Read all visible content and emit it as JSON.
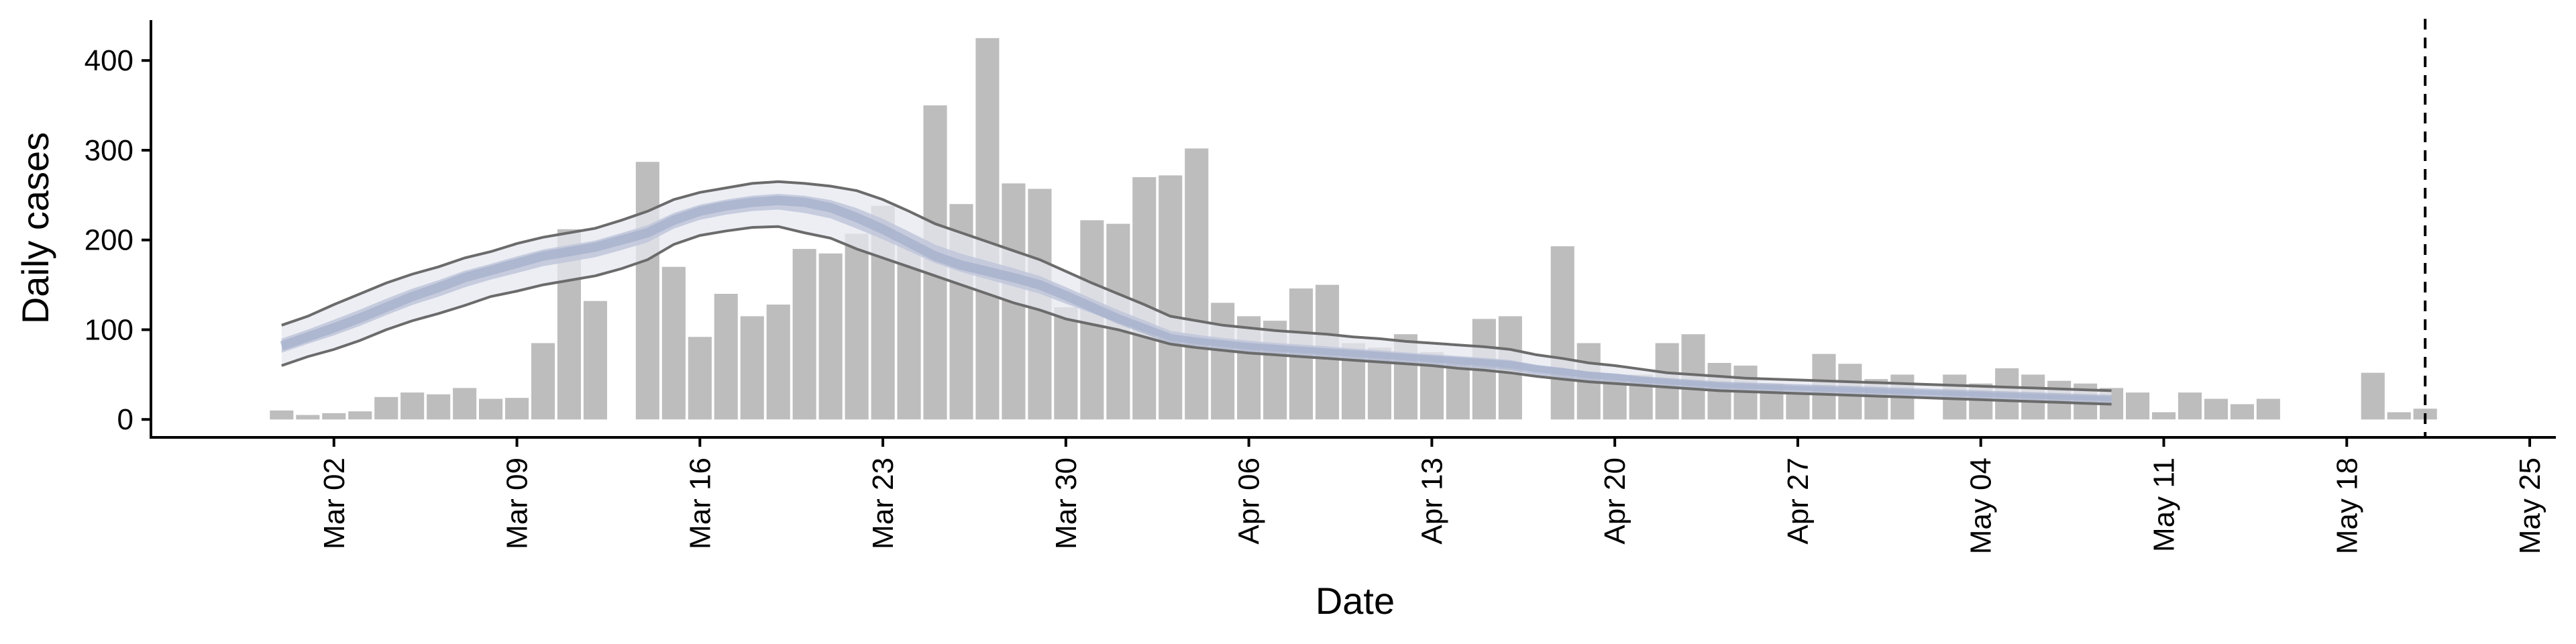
{
  "chart_data": {
    "type": "bar",
    "xlabel": "Date",
    "ylabel": "Daily cases",
    "ylim": [
      -20,
      445
    ],
    "yticks": [
      0,
      100,
      200,
      300,
      400
    ],
    "xlim": [
      "2020-02-24",
      "2020-05-26"
    ],
    "xticks": [
      {
        "date": "2020-03-02",
        "label": "Mar 02"
      },
      {
        "date": "2020-03-09",
        "label": "Mar 09"
      },
      {
        "date": "2020-03-16",
        "label": "Mar 16"
      },
      {
        "date": "2020-03-23",
        "label": "Mar 23"
      },
      {
        "date": "2020-03-30",
        "label": "Mar 30"
      },
      {
        "date": "2020-04-06",
        "label": "Apr 06"
      },
      {
        "date": "2020-04-13",
        "label": "Apr 13"
      },
      {
        "date": "2020-04-20",
        "label": "Apr 20"
      },
      {
        "date": "2020-04-27",
        "label": "Apr 27"
      },
      {
        "date": "2020-05-04",
        "label": "May 04"
      },
      {
        "date": "2020-05-11",
        "label": "May 11"
      },
      {
        "date": "2020-05-18",
        "label": "May 18"
      },
      {
        "date": "2020-05-25",
        "label": "May 25"
      }
    ],
    "bars": {
      "start_date": "2020-02-29",
      "values": [
        10,
        5,
        7,
        9,
        25,
        30,
        28,
        35,
        23,
        24,
        85,
        212,
        132,
        null,
        287,
        170,
        92,
        140,
        115,
        128,
        190,
        185,
        207,
        238,
        195,
        350,
        240,
        425,
        263,
        257,
        125,
        222,
        218,
        270,
        272,
        302,
        130,
        115,
        110,
        146,
        150,
        85,
        80,
        95,
        75,
        65,
        112,
        115,
        null,
        193,
        85,
        45,
        50,
        85,
        95,
        63,
        60,
        40,
        30,
        73,
        62,
        45,
        50,
        null,
        50,
        40,
        57,
        50,
        43,
        40,
        35,
        30,
        8,
        30,
        23,
        17,
        23,
        null,
        null,
        null,
        52,
        8,
        12
      ]
    },
    "estimate": {
      "start_date": "2020-02-29",
      "upper": [
        105,
        115,
        128,
        140,
        152,
        162,
        170,
        180,
        187,
        196,
        203,
        208,
        213,
        222,
        232,
        245,
        253,
        258,
        263,
        265,
        263,
        260,
        255,
        245,
        232,
        218,
        208,
        198,
        188,
        178,
        165,
        152,
        140,
        128,
        115,
        110,
        105,
        102,
        99,
        97,
        95,
        92,
        90,
        87,
        85,
        83,
        81,
        78,
        72,
        68,
        63,
        60,
        56,
        52,
        50,
        48,
        46,
        45,
        44,
        43,
        42,
        41,
        40,
        39,
        38,
        37,
        36,
        35,
        34,
        33,
        32
      ],
      "median": [
        82,
        92,
        102,
        113,
        125,
        137,
        147,
        158,
        166,
        174,
        182,
        187,
        192,
        200,
        208,
        222,
        232,
        238,
        242,
        244,
        242,
        236,
        225,
        212,
        197,
        182,
        172,
        165,
        158,
        150,
        138,
        125,
        112,
        101,
        90,
        86,
        83,
        80,
        78,
        76,
        74,
        72,
        70,
        68,
        66,
        64,
        62,
        60,
        55,
        52,
        48,
        46,
        43,
        41,
        39,
        37,
        36,
        35,
        34,
        33,
        32,
        31,
        30,
        29,
        28,
        27,
        26,
        25,
        24,
        23,
        22
      ],
      "lower": [
        60,
        70,
        78,
        88,
        100,
        110,
        118,
        127,
        137,
        143,
        150,
        155,
        160,
        168,
        178,
        195,
        205,
        210,
        214,
        215,
        208,
        202,
        190,
        180,
        170,
        160,
        150,
        140,
        130,
        122,
        112,
        106,
        100,
        92,
        84,
        80,
        77,
        74,
        72,
        70,
        68,
        66,
        64,
        62,
        60,
        57,
        55,
        52,
        48,
        45,
        42,
        40,
        38,
        36,
        34,
        32,
        31,
        30,
        29,
        28,
        27,
        26,
        25,
        24,
        23,
        22,
        21,
        20,
        19,
        18,
        17
      ]
    },
    "vline_date": "2020-05-21",
    "colors": {
      "bar": "#bdbdbd",
      "band_outer": "#e6e8f0",
      "band_inner": "#bfc5d9",
      "median": "#9aa6c4",
      "bound_line": "#6b6b6b",
      "axis": "#000000"
    },
    "grid": false,
    "legend": "none"
  }
}
